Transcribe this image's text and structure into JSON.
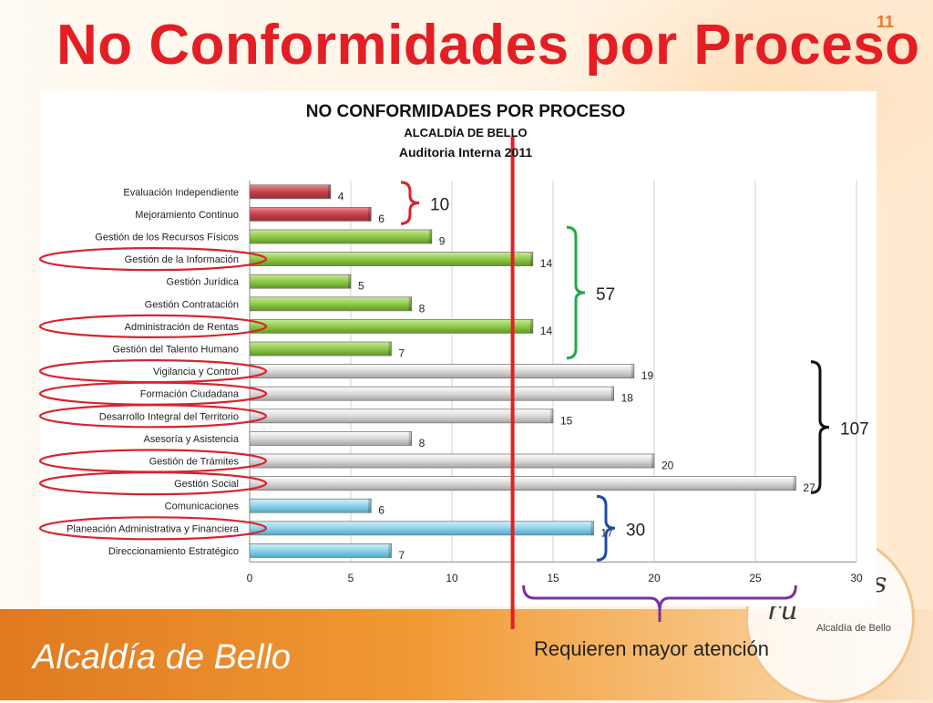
{
  "slide": {
    "title": "No Conformidades por Proceso",
    "number": "11",
    "footer": "Alcaldía de Bello",
    "seal_text": "Alcaldía de Bello",
    "seal_script_a": "os",
    "seal_script_b": "ru"
  },
  "chart_data": {
    "type": "bar",
    "orientation": "horizontal",
    "title": "NO CONFORMIDADES POR PROCESO",
    "subtitle": "ALCALDÍA DE BELLO",
    "subtitle2": "Auditoria Interna 2011",
    "xlim": [
      0,
      30
    ],
    "xticks": [
      0,
      5,
      10,
      15,
      20,
      25,
      30
    ],
    "categories": [
      "Evaluación Independiente",
      "Mejoramiento Continuo",
      "Gestión de los Recursos Físicos",
      "Gestión de la Información",
      "Gestión Jurídica",
      "Gestión Contratación",
      "Administración de Rentas",
      "Gestión del Talento Humano",
      "Vigilancia y Control",
      "Formación Ciudadana",
      "Desarrollo Integral del Territorio",
      "Asesoría y Asistencia",
      "Gestión de Trámites",
      "Gestión Social",
      "Comunicaciones",
      "Planeación Administrativa y Financiera",
      "Direccionamiento Estratégico"
    ],
    "values": [
      4,
      6,
      9,
      14,
      5,
      8,
      14,
      7,
      19,
      18,
      15,
      8,
      20,
      27,
      6,
      17,
      7
    ],
    "value_labels": [
      "4",
      "6",
      "9",
      "14",
      "5",
      "8",
      "14",
      "7",
      "19",
      "18",
      "15",
      "8",
      "20",
      "27",
      "6",
      "17",
      "7"
    ],
    "bar_colors": [
      "red",
      "red",
      "green",
      "green",
      "green",
      "green",
      "green",
      "green",
      "gray",
      "gray",
      "gray",
      "gray",
      "gray",
      "gray",
      "blue",
      "blue",
      "blue"
    ],
    "colors": {
      "red": "#c8434a",
      "green": "#8fc94a",
      "gray": "#d9d9d9",
      "blue": "#8fd3ea"
    },
    "threshold_value": 13,
    "circled_categories": [
      "Gestión de la Información",
      "Administración de Rentas",
      "Vigilancia y Control",
      "Formación Ciudadana",
      "Desarrollo Integral del Territorio",
      "Gestión de Trámites",
      "Gestión Social",
      "Planeación Administrativa y Financiera"
    ]
  },
  "annotations": {
    "group_totals": [
      {
        "label": "10",
        "color": "#d9232d"
      },
      {
        "label": "57",
        "color": "#20a84a"
      },
      {
        "label": "107",
        "color": "#111111"
      },
      {
        "label": "30",
        "color": "#1f4e9c"
      }
    ],
    "requieren": "Requieren mayor atención",
    "threshold_color": "#e31e24",
    "circle_color": "#d9232d",
    "bracket_color": "#7b2fa3"
  }
}
